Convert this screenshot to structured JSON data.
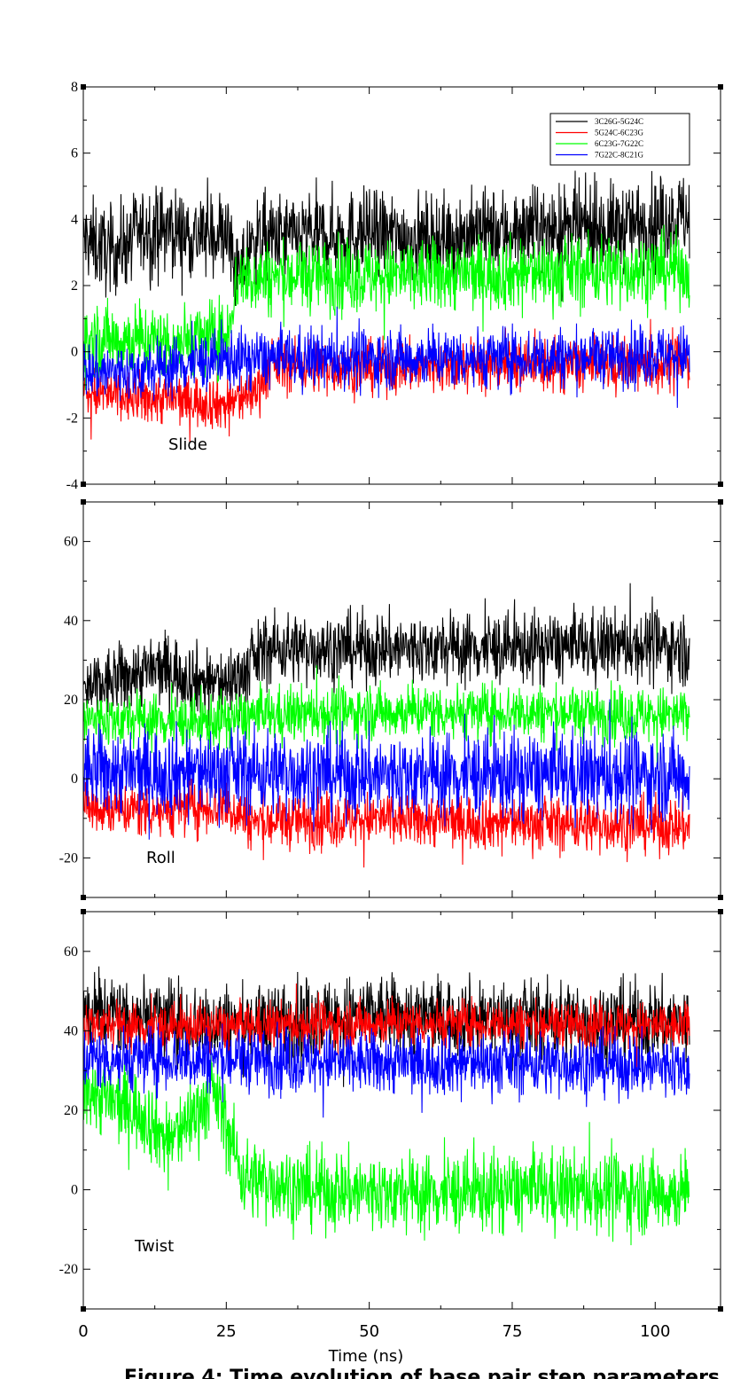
{
  "chart_data": [
    {
      "type": "line",
      "panel_label": "Slide",
      "ylim": [
        -4,
        8
      ],
      "yticks": [
        -4,
        -2,
        0,
        2,
        4,
        6,
        8
      ],
      "xlim": [
        0,
        110
      ],
      "series": [
        {
          "name": "3C26G-5G24C",
          "color": "#000000",
          "path": [
            [
              0,
              3.4
            ],
            [
              5,
              3.0
            ],
            [
              10,
              3.6
            ],
            [
              15,
              3.7
            ],
            [
              20,
              3.5
            ],
            [
              25,
              3.6
            ],
            [
              27,
              2.2
            ],
            [
              30,
              3.4
            ],
            [
              40,
              3.5
            ],
            [
              50,
              3.6
            ],
            [
              60,
              3.4
            ],
            [
              70,
              3.6
            ],
            [
              80,
              3.7
            ],
            [
              90,
              3.7
            ],
            [
              100,
              3.9
            ],
            [
              105,
              4.1
            ]
          ],
          "noise": 0.65
        },
        {
          "name": "5G24C-6C23G",
          "color": "#ff0000",
          "path": [
            [
              0,
              -1.2
            ],
            [
              8,
              -1.4
            ],
            [
              15,
              -1.4
            ],
            [
              22,
              -1.5
            ],
            [
              25,
              -1.6
            ],
            [
              30,
              -1.2
            ],
            [
              33,
              -0.4
            ],
            [
              50,
              -0.5
            ],
            [
              75,
              -0.4
            ],
            [
              100,
              -0.4
            ],
            [
              105,
              -0.3
            ]
          ],
          "noise": 0.4
        },
        {
          "name": "6C23G-7G22C",
          "color": "#00ff00",
          "path": [
            [
              0,
              0.3
            ],
            [
              5,
              0.4
            ],
            [
              15,
              0.3
            ],
            [
              25,
              0.5
            ],
            [
              27,
              2.2
            ],
            [
              40,
              2.3
            ],
            [
              60,
              2.3
            ],
            [
              80,
              2.4
            ],
            [
              100,
              2.5
            ],
            [
              105,
              2.5
            ]
          ],
          "noise": 0.55
        },
        {
          "name": "7G22C-8C21G",
          "color": "#0000ff",
          "path": [
            [
              0,
              -0.6
            ],
            [
              10,
              -0.6
            ],
            [
              20,
              -0.3
            ],
            [
              30,
              -0.2
            ],
            [
              50,
              -0.2
            ],
            [
              80,
              -0.15
            ],
            [
              105,
              -0.1
            ]
          ],
          "noise": 0.45
        }
      ]
    },
    {
      "type": "line",
      "panel_label": "Roll",
      "ylim": [
        -30,
        70
      ],
      "yticks": [
        -20,
        0,
        20,
        40,
        60
      ],
      "xlim": [
        0,
        110
      ],
      "series": [
        {
          "name": "3C26G-5G24C",
          "color": "#000000",
          "path": [
            [
              0,
              22
            ],
            [
              10,
              27
            ],
            [
              15,
              28
            ],
            [
              20,
              25
            ],
            [
              25,
              24
            ],
            [
              28,
              27
            ],
            [
              32,
              33
            ],
            [
              50,
              33
            ],
            [
              75,
              33
            ],
            [
              100,
              34
            ],
            [
              105,
              33
            ]
          ],
          "noise": 4.5
        },
        {
          "name": "5G24C-6C23G",
          "color": "#ff0000",
          "path": [
            [
              0,
              -7
            ],
            [
              10,
              -8
            ],
            [
              20,
              -7
            ],
            [
              25,
              -7
            ],
            [
              30,
              -11
            ],
            [
              50,
              -10
            ],
            [
              75,
              -11
            ],
            [
              105,
              -12
            ]
          ],
          "noise": 3.5
        },
        {
          "name": "6C23G-7G22C",
          "color": "#00ff00",
          "path": [
            [
              0,
              15
            ],
            [
              10,
              15
            ],
            [
              20,
              14
            ],
            [
              30,
              16
            ],
            [
              50,
              17
            ],
            [
              75,
              17
            ],
            [
              105,
              16
            ]
          ],
          "noise": 3.5
        },
        {
          "name": "7G22C-8C21G",
          "color": "#0000ff",
          "path": [
            [
              0,
              2
            ],
            [
              25,
              2
            ],
            [
              50,
              1
            ],
            [
              75,
              1
            ],
            [
              105,
              1
            ]
          ],
          "noise": 5.5
        }
      ]
    },
    {
      "type": "line",
      "panel_label": "Twist",
      "ylim": [
        -30,
        70
      ],
      "yticks": [
        -20,
        0,
        20,
        40,
        60
      ],
      "xlim": [
        0,
        110
      ],
      "series": [
        {
          "name": "3C26G-5G24C",
          "color": "#000000",
          "path": [
            [
              0,
              45
            ],
            [
              10,
              44
            ],
            [
              20,
              42
            ],
            [
              30,
              42
            ],
            [
              50,
              44
            ],
            [
              75,
              43
            ],
            [
              105,
              42
            ]
          ],
          "noise": 5.0
        },
        {
          "name": "5G24C-6C23G",
          "color": "#ff0000",
          "path": [
            [
              0,
              42
            ],
            [
              10,
              41
            ],
            [
              25,
              41
            ],
            [
              50,
              42
            ],
            [
              75,
              42
            ],
            [
              105,
              41
            ]
          ],
          "noise": 3.0
        },
        {
          "name": "6C23G-7G22C",
          "color": "#00ff00",
          "path": [
            [
              0,
              26
            ],
            [
              5,
              22
            ],
            [
              10,
              20
            ],
            [
              15,
              12
            ],
            [
              20,
              20
            ],
            [
              23,
              25
            ],
            [
              26,
              12
            ],
            [
              28,
              3
            ],
            [
              40,
              0
            ],
            [
              60,
              -1
            ],
            [
              80,
              0
            ],
            [
              105,
              -1
            ]
          ],
          "noise": 5.0
        },
        {
          "name": "7G22C-8C21G",
          "color": "#0000ff",
          "path": [
            [
              0,
              33
            ],
            [
              25,
              33
            ],
            [
              50,
              32
            ],
            [
              75,
              32
            ],
            [
              105,
              31
            ]
          ],
          "noise": 4.0
        }
      ]
    }
  ],
  "x_axis": {
    "title": "Time (ns)",
    "ticks": [
      0,
      25,
      50,
      75,
      100
    ]
  },
  "legend": {
    "entries": [
      "3C26G-5G24C",
      "5G24C-6C23G",
      "6C23G-7G22C",
      "7G22C-8C21G"
    ],
    "colors": [
      "#000000",
      "#ff0000",
      "#00ff00",
      "#0000ff"
    ],
    "placement": "top-right"
  },
  "caption": "Figure 4: Time evolution of base pair step parameters"
}
